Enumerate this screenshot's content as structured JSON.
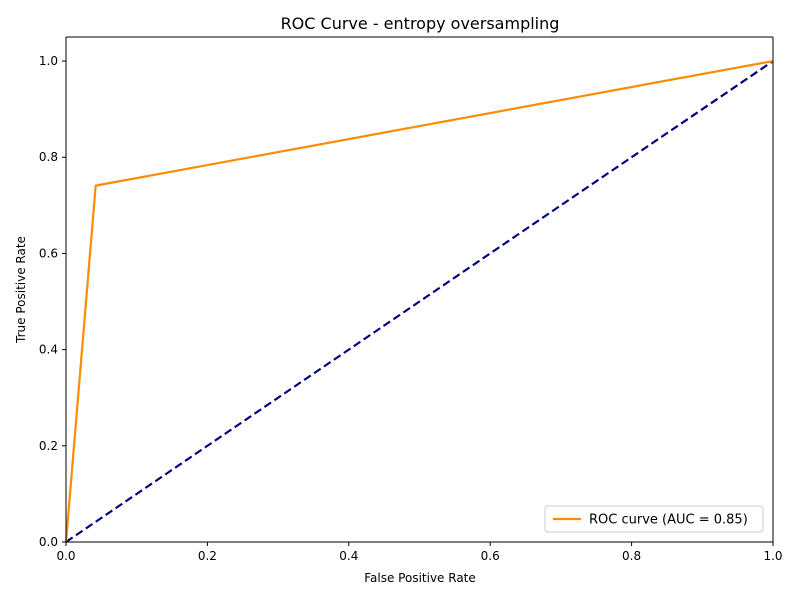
{
  "chart_data": {
    "type": "line",
    "title": "ROC Curve - entropy oversampling",
    "xlabel": "False Positive Rate",
    "ylabel": "True Positive Rate",
    "xlim": [
      0.0,
      1.0
    ],
    "ylim": [
      0.0,
      1.05
    ],
    "xticks": [
      0.0,
      0.2,
      0.4,
      0.6,
      0.8,
      1.0
    ],
    "yticks": [
      0.0,
      0.2,
      0.4,
      0.6,
      0.8,
      1.0
    ],
    "xtick_labels": [
      "0.0",
      "0.2",
      "0.4",
      "0.6",
      "0.8",
      "1.0"
    ],
    "ytick_labels": [
      "0.0",
      "0.2",
      "0.4",
      "0.6",
      "0.8",
      "1.0"
    ],
    "grid": false,
    "legend_position": "lower right",
    "series": [
      {
        "name": "ROC curve (AUC = 0.85)",
        "color": "#ff8c00",
        "style": "solid",
        "x": [
          0.0,
          0.042,
          1.0
        ],
        "y": [
          0.0,
          0.741,
          1.0
        ]
      },
      {
        "color": "#000080",
        "style": "dashed",
        "x": [
          0.0,
          1.0
        ],
        "y": [
          0.0,
          1.0
        ]
      }
    ]
  }
}
